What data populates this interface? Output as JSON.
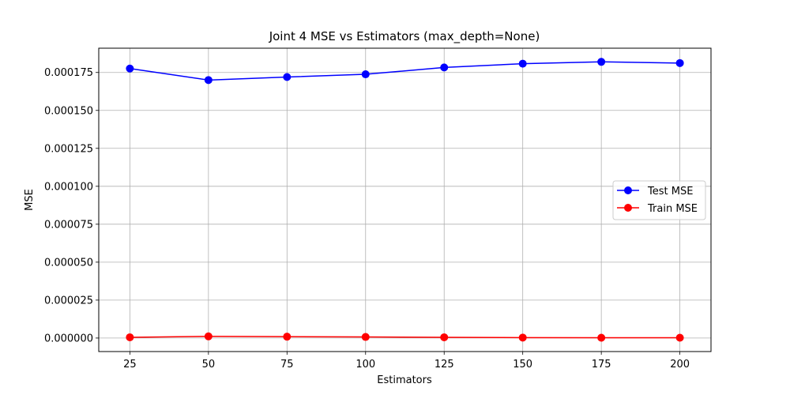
{
  "chart_data": {
    "type": "line",
    "title": "Joint 4 MSE vs Estimators (max_depth=None)",
    "xlabel": "Estimators",
    "ylabel": "MSE",
    "x": [
      25,
      50,
      75,
      100,
      125,
      150,
      175,
      200
    ],
    "xticks": [
      25,
      50,
      75,
      100,
      125,
      150,
      175,
      200
    ],
    "xtick_labels": [
      "25",
      "50",
      "75",
      "100",
      "125",
      "150",
      "175",
      "200"
    ],
    "yticks": [
      0,
      2.5e-05,
      5e-05,
      7.5e-05,
      0.0001,
      0.000125,
      0.00015,
      0.000175
    ],
    "ytick_labels": [
      "0.000000",
      "0.000025",
      "0.000050",
      "0.000075",
      "0.000100",
      "0.000125",
      "0.000150",
      "0.000175"
    ],
    "xlim": [
      15.1,
      209.9
    ],
    "ylim": [
      -8.9e-06,
      0.000191
    ],
    "grid": true,
    "legend_position": "center-right",
    "series": [
      {
        "name": "Test MSE",
        "color": "#0000ff",
        "values": [
          0.0001776,
          0.00017,
          0.000172,
          0.0001738,
          0.0001783,
          0.0001808,
          0.000182,
          0.0001812
        ]
      },
      {
        "name": "Train MSE",
        "color": "#ff0000",
        "values": [
          5e-07,
          1.1e-06,
          9e-07,
          7e-07,
          5e-07,
          3e-07,
          2e-07,
          2e-07
        ]
      }
    ]
  }
}
